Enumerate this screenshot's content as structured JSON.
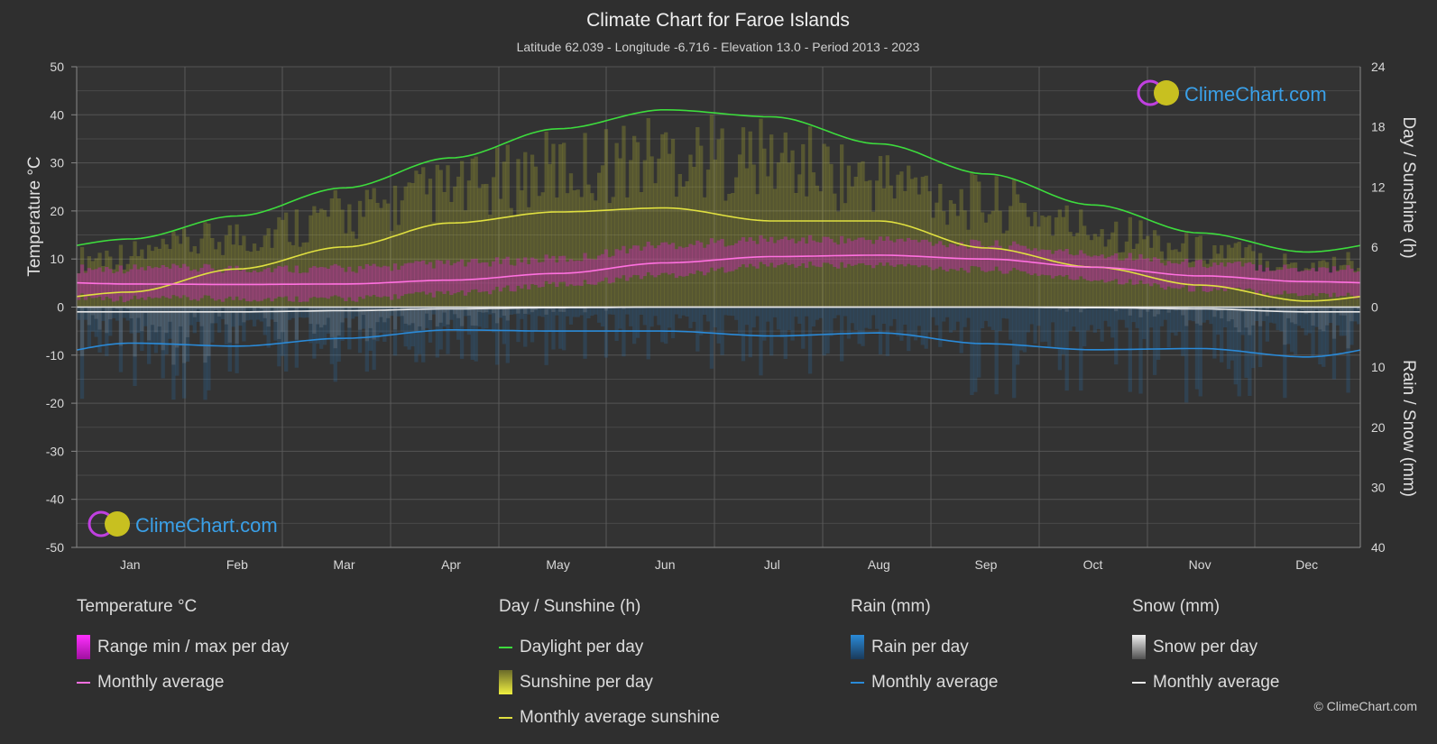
{
  "chart_data": {
    "type": "line",
    "title": "Climate Chart for Faroe Islands",
    "subtitle": "Latitude 62.039 - Longitude -6.716 - Elevation 13.0 - Period 2013 - 2023",
    "categories": [
      "Jan",
      "Feb",
      "Mar",
      "Apr",
      "May",
      "Jun",
      "Jul",
      "Aug",
      "Sep",
      "Oct",
      "Nov",
      "Dec"
    ],
    "axes": {
      "y_left": {
        "label": "Temperature °C",
        "range": [
          -50,
          50
        ],
        "ticks": [
          50,
          40,
          30,
          20,
          10,
          0,
          -10,
          -20,
          -30,
          -40,
          -50
        ]
      },
      "y_right_top": {
        "label": "Day / Sunshine (h)",
        "range": [
          0,
          24
        ],
        "ticks": [
          24,
          18,
          12,
          6,
          0
        ]
      },
      "y_right_bottom": {
        "label": "Rain / Snow (mm)",
        "range": [
          0,
          40
        ],
        "ticks": [
          0,
          10,
          20,
          30,
          40
        ]
      }
    },
    "grid": true,
    "series": [
      {
        "name": "Daylight per day",
        "unit": "h",
        "color": "#3ddc3d",
        "values": [
          6.8,
          9.1,
          11.9,
          14.9,
          17.8,
          19.7,
          19.0,
          16.3,
          13.3,
          10.2,
          7.4,
          5.5
        ]
      },
      {
        "name": "Monthly average sunshine",
        "unit": "h",
        "color": "#e0e040",
        "values": [
          1.5,
          3.8,
          6.0,
          8.4,
          9.5,
          9.9,
          8.6,
          8.6,
          5.9,
          4.0,
          2.2,
          0.6
        ]
      },
      {
        "name": "Temperature monthly average",
        "unit": "°C",
        "color": "#ff70e0",
        "values": [
          4.8,
          4.7,
          4.8,
          5.6,
          7.0,
          9.2,
          10.5,
          10.8,
          10.0,
          8.3,
          6.5,
          5.3
        ]
      },
      {
        "name": "Rain monthly average",
        "unit": "mm",
        "color": "#2a8ad8",
        "values": [
          6.0,
          6.5,
          5.2,
          3.8,
          4.0,
          4.0,
          4.8,
          4.3,
          6.1,
          7.1,
          6.9,
          8.3
        ]
      },
      {
        "name": "Snow monthly average",
        "unit": "mm",
        "color": "#e8e8e8",
        "values": [
          0.8,
          0.8,
          0.6,
          0.3,
          0.1,
          0.0,
          0.0,
          0.0,
          0.0,
          0.1,
          0.3,
          0.8
        ]
      }
    ],
    "temperature_range": {
      "min": [
        2,
        2,
        2,
        3,
        5,
        7,
        9,
        9,
        8,
        6,
        4,
        3
      ],
      "max": [
        7,
        7,
        7,
        8,
        9,
        12,
        13,
        13,
        12,
        10,
        8,
        7
      ]
    }
  },
  "legend": {
    "temperature": {
      "title": "Temperature °C",
      "range_label": "Range min / max per day",
      "avg_label": "Monthly average"
    },
    "sunshine": {
      "title": "Day / Sunshine (h)",
      "daylight_label": "Daylight per day",
      "sunshine_label": "Sunshine per day",
      "avg_label": "Monthly average sunshine"
    },
    "rain": {
      "title": "Rain (mm)",
      "per_day_label": "Rain per day",
      "avg_label": "Monthly average"
    },
    "snow": {
      "title": "Snow (mm)",
      "per_day_label": "Snow per day",
      "avg_label": "Monthly average"
    }
  },
  "watermark": "ClimeChart.com",
  "copyright": "© ClimeChart.com",
  "colors": {
    "background": "#2f2f2f",
    "temp_range": "#d020c0",
    "sunshine_bar": "#b8b830",
    "rain_bar": "#2a7ac0",
    "snow_bar": "#bfbfbf"
  }
}
